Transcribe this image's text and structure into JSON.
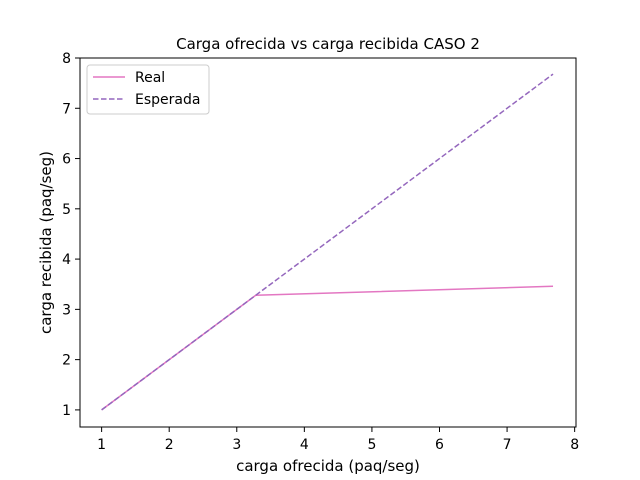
{
  "chart_data": {
    "type": "line",
    "title": "Carga ofrecida vs carga recibida CASO 2",
    "xlabel": "carga ofrecida (paq/seg)",
    "ylabel": "carga recibida (paq/seg)",
    "xlim": [
      0.68,
      8.02
    ],
    "ylim": [
      0.66,
      8.0
    ],
    "xticks": [
      1,
      2,
      3,
      4,
      5,
      6,
      7,
      8
    ],
    "yticks": [
      1,
      2,
      3,
      4,
      5,
      6,
      7,
      8
    ],
    "grid": false,
    "legend_position": "top-left",
    "series": [
      {
        "name": "Real",
        "color": "#e377c2",
        "style": "solid",
        "x": [
          1.0,
          3.28,
          7.68
        ],
        "y": [
          1.0,
          3.28,
          3.46
        ]
      },
      {
        "name": "Esperada",
        "color": "#9467bd",
        "style": "dashed",
        "x": [
          1.0,
          7.68
        ],
        "y": [
          1.0,
          7.68
        ]
      }
    ]
  }
}
